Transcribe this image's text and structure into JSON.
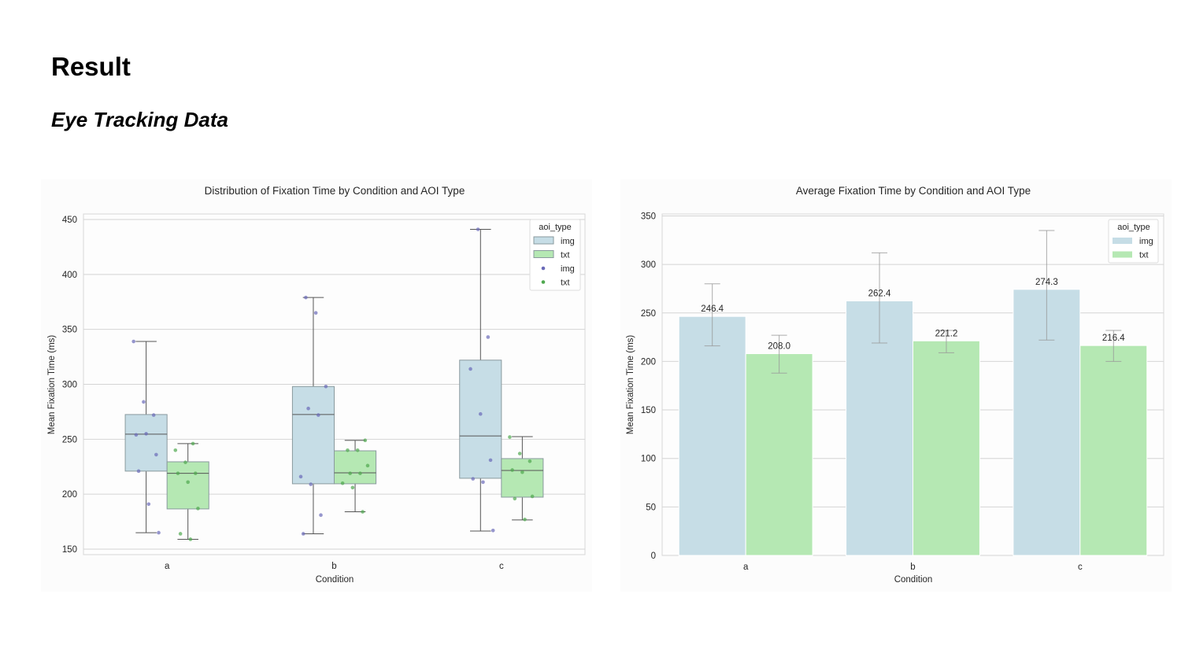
{
  "slide": {
    "title": "Result",
    "subtitle": "Eye Tracking Data"
  },
  "colors": {
    "img_fill": "#c6dde6",
    "txt_fill": "#b5e8b3",
    "img_point": "#6a6ab8",
    "txt_point": "#4fa84f",
    "grid": "#d4d4d4",
    "line": "#555555"
  },
  "chart_data": [
    {
      "type": "box",
      "title": "Distribution of Fixation Time by Condition and AOI Type",
      "xlabel": "Condition",
      "ylabel": "Mean Fixation Time (ms)",
      "categories": [
        "a",
        "b",
        "c"
      ],
      "ylim": [
        145,
        455
      ],
      "yticks": [
        150,
        200,
        250,
        300,
        350,
        400,
        450
      ],
      "grid": true,
      "legend": {
        "title": "aoi_type",
        "placement": "top-right",
        "entries": [
          "img",
          "txt",
          "img",
          "txt"
        ]
      },
      "series": [
        {
          "name": "img",
          "boxes": [
            {
              "whislo": 165,
              "q1": 221,
              "med": 254.6,
              "q3": 272.5,
              "whishi": 339
            },
            {
              "whislo": 164,
              "q1": 209.5,
              "med": 272.5,
              "q3": 298,
              "whishi": 379
            },
            {
              "whislo": 166.5,
              "q1": 214.5,
              "med": 253,
              "q3": 322,
              "whishi": 441
            }
          ],
          "points": [
            [
              339,
              284,
              272,
              254,
              255,
              236,
              221,
              191,
              165
            ],
            [
              379,
              365,
              298,
              278,
              272,
              216,
              209,
              181,
              164
            ],
            [
              441,
              343,
              314,
              273,
              231,
              214,
              211,
              167
            ]
          ]
        },
        {
          "name": "txt",
          "boxes": [
            {
              "whislo": 159,
              "q1": 186.6,
              "med": 219,
              "q3": 229.5,
              "whishi": 246
            },
            {
              "whislo": 184,
              "q1": 209.5,
              "med": 219.5,
              "q3": 239.5,
              "whishi": 249
            },
            {
              "whislo": 176.6,
              "q1": 197.3,
              "med": 221.6,
              "q3": 232.4,
              "whishi": 252.4
            }
          ],
          "points": [
            [
              246,
              240,
              229,
              219,
              219,
              211,
              187,
              164,
              159
            ],
            [
              249,
              240,
              240,
              226,
              219,
              219,
              210,
              206,
              184
            ],
            [
              252,
              237,
              230,
              222,
              220,
              198,
              196,
              177
            ]
          ]
        }
      ]
    },
    {
      "type": "bar",
      "title": "Average Fixation Time by Condition and AOI Type",
      "xlabel": "Condition",
      "ylabel": "Mean Fixation Time (ms)",
      "categories": [
        "a",
        "b",
        "c"
      ],
      "ylim": [
        0,
        352
      ],
      "yticks": [
        0,
        50,
        100,
        150,
        200,
        250,
        300,
        350
      ],
      "grid": true,
      "legend": {
        "title": "aoi_type",
        "placement": "top-right",
        "entries": [
          "img",
          "txt"
        ]
      },
      "series": [
        {
          "name": "img",
          "values": [
            246.4,
            262.4,
            274.3
          ],
          "labels": [
            "246.4",
            "262.4",
            "274.3"
          ],
          "err_low": [
            216,
            219,
            222
          ],
          "err_high": [
            280,
            312,
            335
          ]
        },
        {
          "name": "txt",
          "values": [
            208.0,
            221.2,
            216.4
          ],
          "labels": [
            "208.0",
            "221.2",
            "216.4"
          ],
          "err_low": [
            188,
            209,
            200
          ],
          "err_high": [
            227,
            232,
            232
          ]
        }
      ]
    }
  ]
}
